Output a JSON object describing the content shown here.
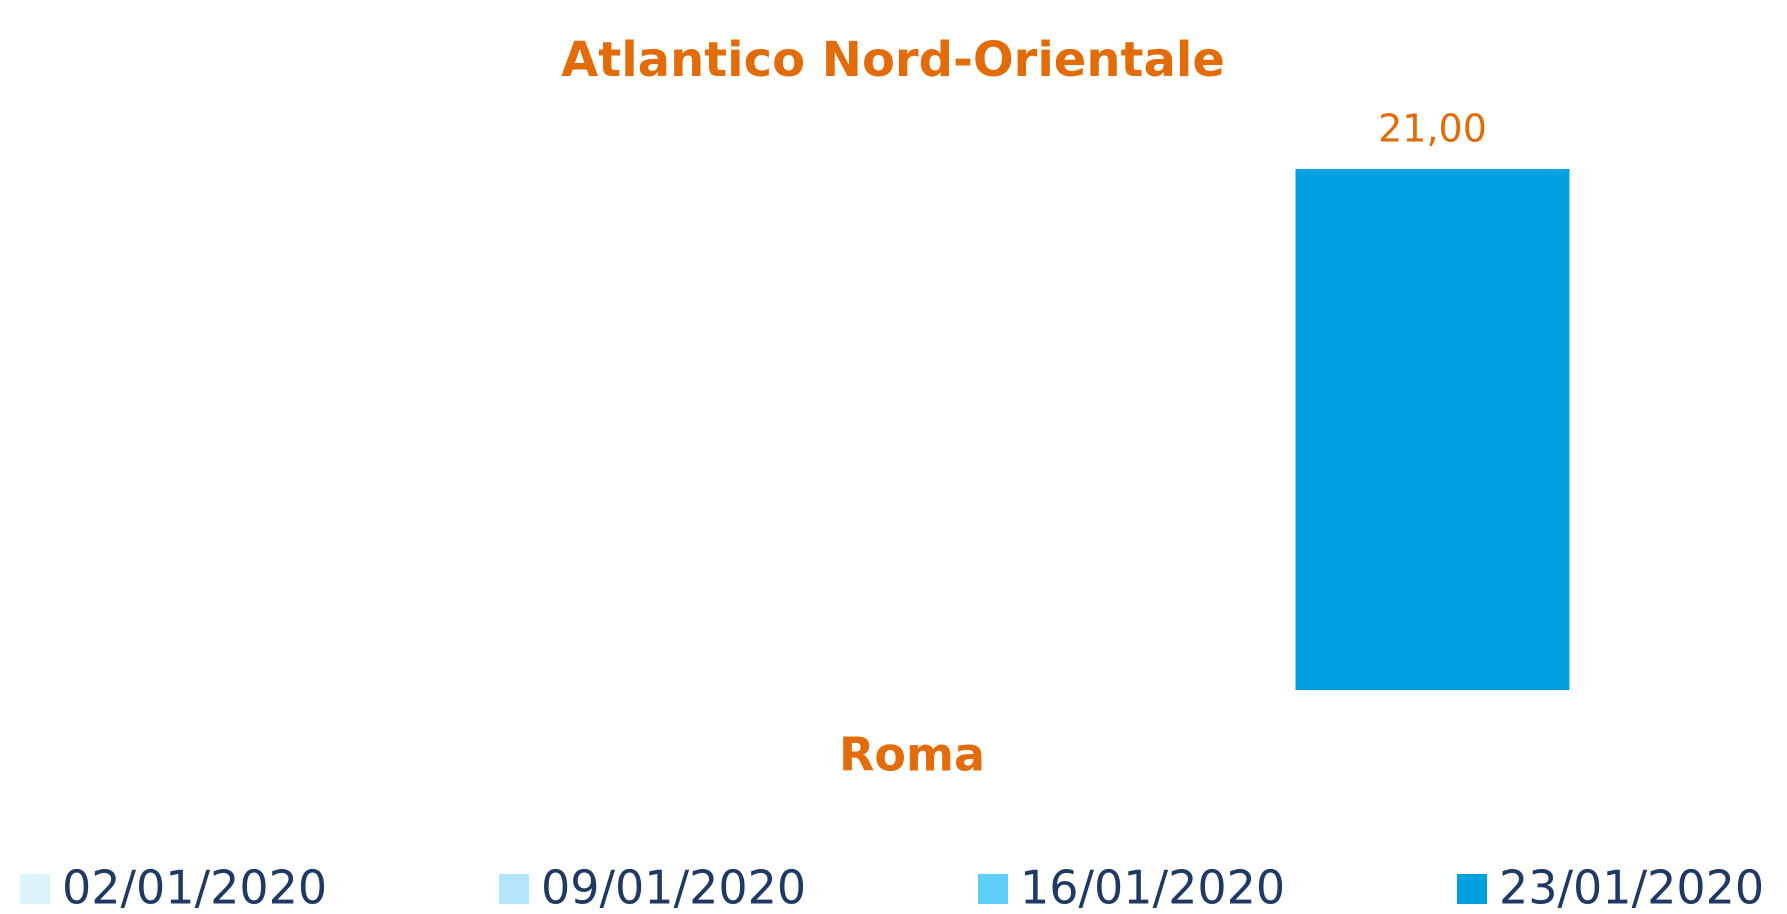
{
  "chart_data": {
    "type": "bar",
    "title": "Atlantico Nord-Orientale",
    "categories": [
      "Roma"
    ],
    "series": [
      {
        "name": "02/01/2020",
        "color": "#ddf3fc",
        "values": [
          null
        ]
      },
      {
        "name": "09/01/2020",
        "color": "#b3e5fc",
        "values": [
          null
        ]
      },
      {
        "name": "16/01/2020",
        "color": "#5dcff8",
        "values": [
          null
        ]
      },
      {
        "name": "23/01/2020",
        "color": "#00a0e0",
        "values": [
          21
        ],
        "value_labels": [
          "21,00"
        ]
      }
    ],
    "legend": "bottom"
  }
}
